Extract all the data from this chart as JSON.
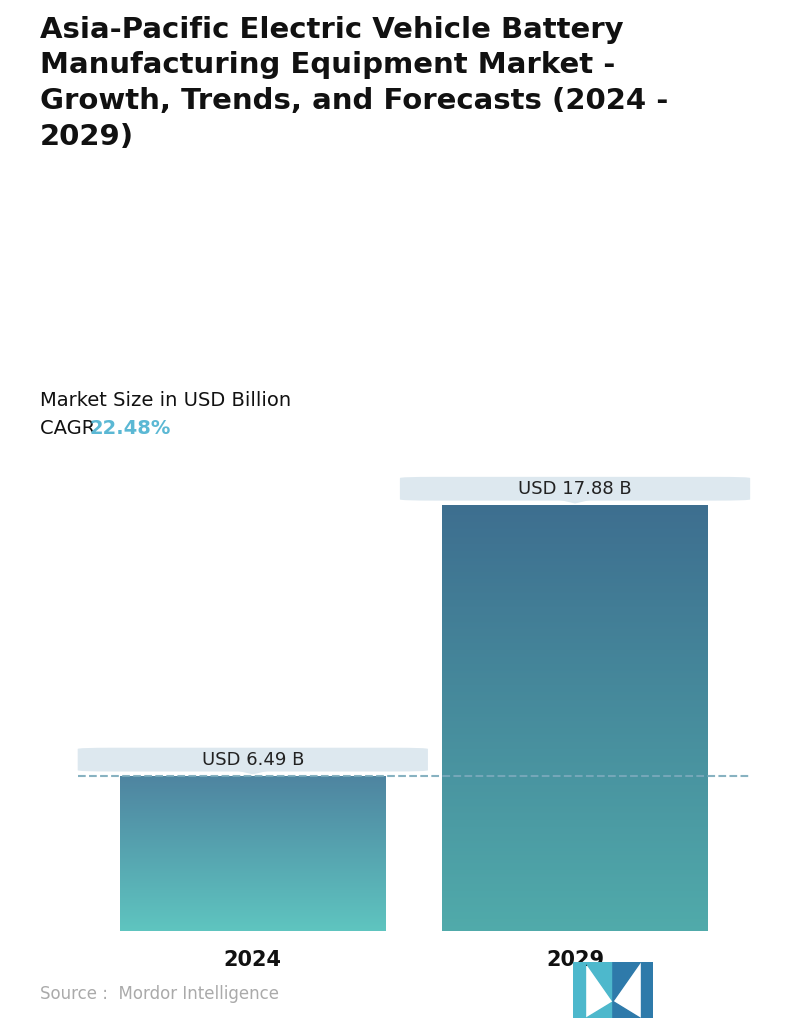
{
  "title": "Asia-Pacific Electric Vehicle Battery\nManufacturing Equipment Market -\nGrowth, Trends, and Forecasts (2024 -\n2029)",
  "subtitle": "Market Size in USD Billion",
  "cagr_label": "CAGR ",
  "cagr_value": "22.48%",
  "cagr_color": "#5bb8d4",
  "categories": [
    "2024",
    "2029"
  ],
  "values": [
    6.49,
    17.88
  ],
  "labels": [
    "USD 6.49 B",
    "USD 17.88 B"
  ],
  "bar_color_top_2024": "#4e84a0",
  "bar_color_bottom_2024": "#5ec4bf",
  "bar_color_top_2029": "#3d6e8f",
  "bar_color_bottom_2029": "#50aaaa",
  "dashed_line_color": "#7aaabb",
  "source_text": "Source :  Mordor Intelligence",
  "source_color": "#aaaaaa",
  "background_color": "#ffffff",
  "callout_bg": "#dde8ef",
  "callout_text_color": "#222222",
  "title_fontsize": 21,
  "subtitle_fontsize": 14,
  "cagr_fontsize": 14,
  "tick_fontsize": 15,
  "annotation_fontsize": 13,
  "source_fontsize": 12
}
